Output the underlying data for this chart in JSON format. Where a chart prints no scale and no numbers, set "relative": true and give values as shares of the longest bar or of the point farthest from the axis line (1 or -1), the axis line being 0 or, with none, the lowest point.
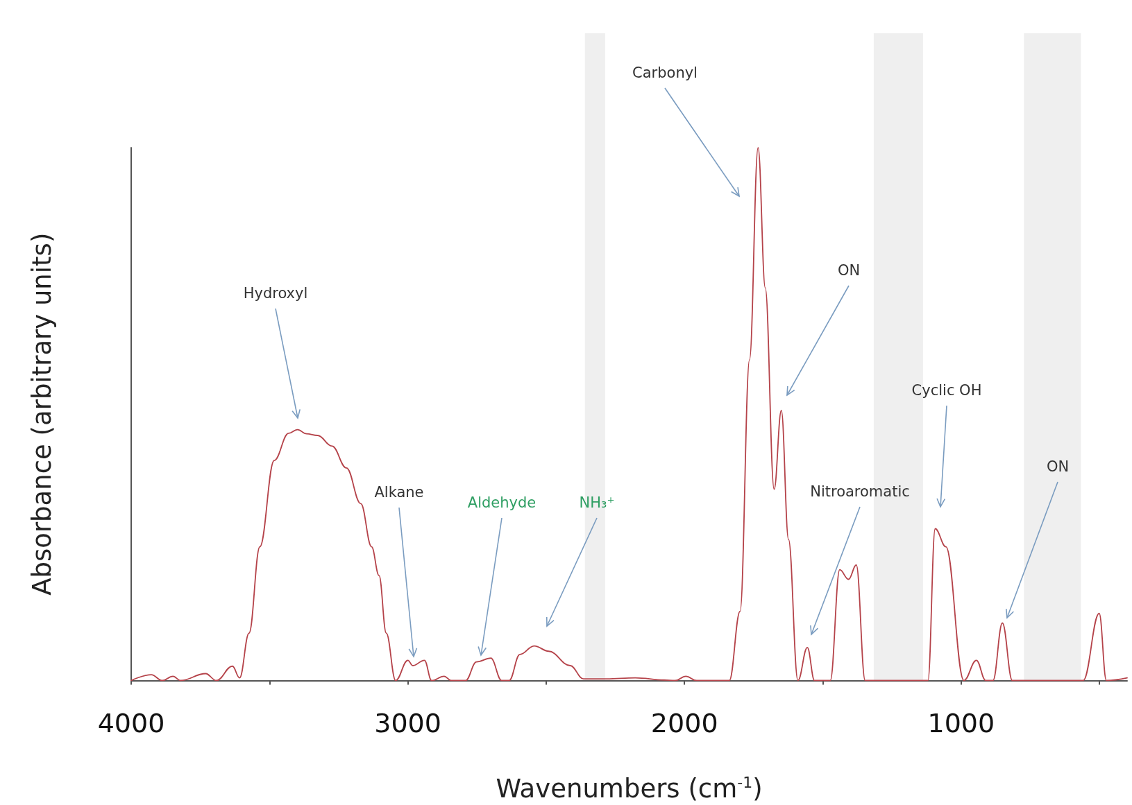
{
  "chart_data": {
    "type": "line",
    "relative": true,
    "xlabel": "Wavenumbers (cm$^{-1}$)",
    "ylabel": "Absorbance (arbitrary units)",
    "xlim": [
      4000,
      400
    ],
    "xticks": [
      4000,
      {
        "value": 3500,
        "label": null
      },
      3000,
      {
        "value": 2500,
        "label": null
      },
      2000,
      {
        "value": 1500,
        "label": null
      },
      1000,
      {
        "value": 500,
        "label": null
      }
    ],
    "grid": false,
    "marker": "none",
    "line_style": "solid",
    "series": [
      {
        "color": "#b5434a",
        "x": [
          4000,
          3927,
          3888,
          3849,
          3822,
          3731,
          3692,
          3634,
          3608,
          3574,
          3535,
          3483,
          3431,
          3399,
          3366,
          3326,
          3274,
          3222,
          3170,
          3131,
          3104,
          3078,
          3044,
          3000,
          2982,
          2940,
          2914,
          2869,
          2843,
          2791,
          2752,
          2700,
          2661,
          2634,
          2595,
          2543,
          2491,
          2413,
          2365,
          2282,
          2178,
          2073,
          2034,
          1995,
          1956,
          1838,
          1799,
          1765,
          1734,
          1708,
          1676,
          1650,
          1624,
          1590,
          1556,
          1530,
          1473,
          1439,
          1407,
          1379,
          1347,
          1211,
          1120,
          1094,
          1055,
          990,
          945,
          911,
          885,
          851,
          815,
          559,
          501,
          475,
          400
        ],
        "values": [
          0,
          0.011,
          0,
          0.008,
          0,
          0.013,
          0,
          0.027,
          0.005,
          0.089,
          0.251,
          0.413,
          0.464,
          0.471,
          0.463,
          0.46,
          0.44,
          0.399,
          0.332,
          0.251,
          0.197,
          0.089,
          0,
          0.038,
          0.028,
          0.038,
          0,
          0.008,
          0,
          0,
          0.035,
          0.042,
          0,
          0,
          0.049,
          0.065,
          0.055,
          0.028,
          0.003,
          0.003,
          0.005,
          0.001,
          0,
          0.008,
          0,
          0,
          0.13,
          0.602,
          1,
          0.737,
          0.359,
          0.507,
          0.265,
          0,
          0.062,
          0,
          0,
          0.208,
          0.19,
          0.217,
          0,
          0,
          0,
          0.285,
          0.251,
          0,
          0.038,
          0,
          0,
          0.108,
          0,
          0,
          0.126,
          0,
          0.005
        ]
      }
    ],
    "bands": [
      {
        "axis": "x",
        "from": 2360,
        "to": 2287,
        "color": "#efefef"
      },
      {
        "axis": "x",
        "from": 1316,
        "to": 1138,
        "color": "#efefef"
      },
      {
        "axis": "x",
        "from": 773,
        "to": 567,
        "color": "#efefef"
      }
    ],
    "annotations": [
      "Hydroxyl",
      "Alkane",
      "Aldehyde",
      "NH₃⁺",
      "Carbonyl",
      "ON",
      "Nitroaromatic",
      "Cyclic OH",
      "ON"
    ]
  }
}
